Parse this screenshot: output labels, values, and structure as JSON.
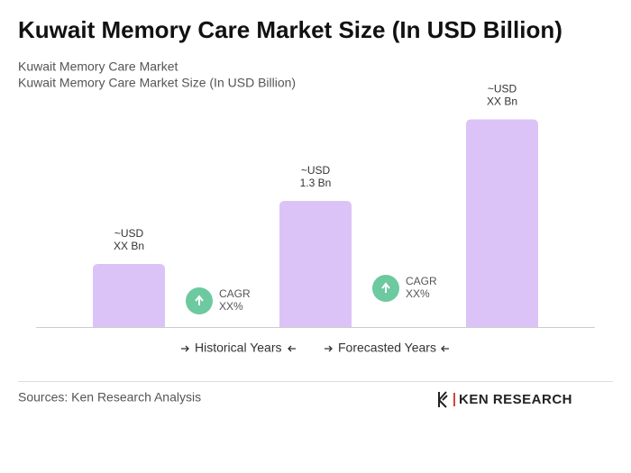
{
  "chart_data": {
    "type": "bar",
    "title": "Kuwait Memory Care Market Size (In USD Billion)",
    "subtitle": [
      "Kuwait Memory Care Market",
      "Kuwait Memory Care Market Size (In USD Billion)"
    ],
    "categories": [
      null,
      null,
      null
    ],
    "values": [
      0.65,
      1.3,
      2.14
    ],
    "value_labels": [
      [
        "~USD",
        "XX Bn"
      ],
      [
        "~USD",
        "1.3 Bn"
      ],
      [
        "~USD",
        "XX Bn"
      ]
    ],
    "color": "#dcc3f7",
    "annotations": [
      [
        "CAGR",
        "XX%"
      ],
      [
        "CAGR",
        "XX%"
      ]
    ],
    "annotation_color": "#6cc9a0",
    "legend": [
      "Historical Years",
      "Forecasted Years"
    ],
    "source": "Sources: Ken Research Analysis",
    "brand": "KEN RESEARCH"
  }
}
